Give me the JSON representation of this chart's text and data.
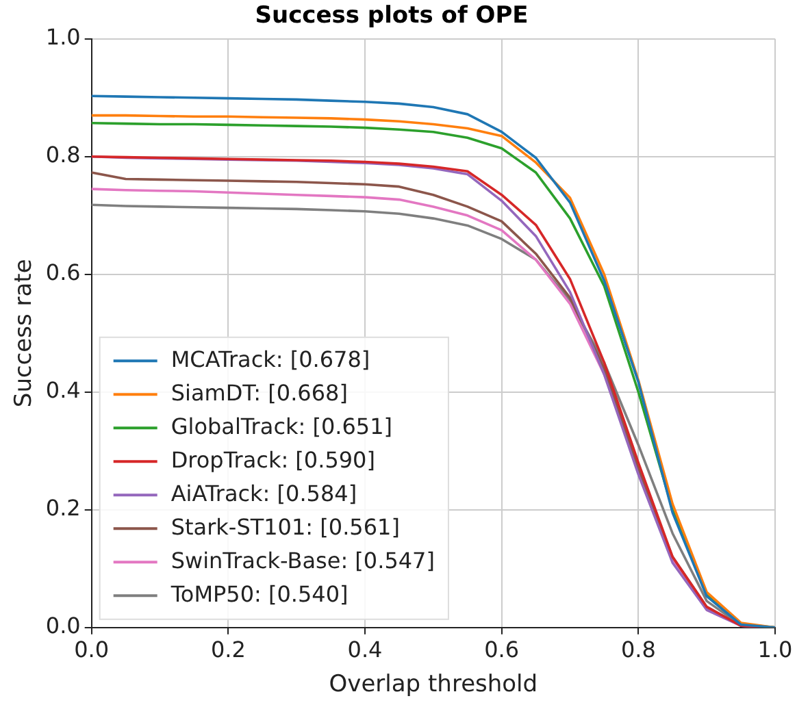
{
  "chart_data": {
    "type": "line",
    "title": "Success plots of OPE",
    "xlabel": "Overlap threshold",
    "ylabel": "Success rate",
    "x": [
      0,
      0.05,
      0.1,
      0.15,
      0.2,
      0.25,
      0.3,
      0.35,
      0.4,
      0.45,
      0.5,
      0.55,
      0.6,
      0.65,
      0.7,
      0.75,
      0.8,
      0.85,
      0.9,
      0.95,
      1.0
    ],
    "series": [
      {
        "name": "MCATrack: [0.678]",
        "color": "#1f77b4",
        "values": [
          0.903,
          0.902,
          0.901,
          0.9,
          0.899,
          0.898,
          0.897,
          0.895,
          0.893,
          0.89,
          0.884,
          0.872,
          0.842,
          0.798,
          0.722,
          0.589,
          0.417,
          0.195,
          0.053,
          0.005,
          0
        ]
      },
      {
        "name": "SiamDT: [0.668]",
        "color": "#ff7f0e",
        "values": [
          0.87,
          0.87,
          0.869,
          0.868,
          0.868,
          0.867,
          0.866,
          0.865,
          0.863,
          0.86,
          0.855,
          0.848,
          0.835,
          0.79,
          0.73,
          0.6,
          0.42,
          0.21,
          0.06,
          0.008,
          0
        ]
      },
      {
        "name": "GlobalTrack: [0.651]",
        "color": "#2ca02c",
        "values": [
          0.857,
          0.856,
          0.855,
          0.855,
          0.854,
          0.853,
          0.852,
          0.851,
          0.849,
          0.846,
          0.842,
          0.832,
          0.814,
          0.773,
          0.695,
          0.58,
          0.4,
          0.2,
          0.055,
          0.006,
          0
        ]
      },
      {
        "name": "DropTrack: [0.590]",
        "color": "#d62728",
        "values": [
          0.8,
          0.799,
          0.798,
          0.797,
          0.796,
          0.795,
          0.794,
          0.793,
          0.791,
          0.788,
          0.783,
          0.775,
          0.735,
          0.684,
          0.592,
          0.45,
          0.28,
          0.12,
          0.035,
          0.003,
          0
        ]
      },
      {
        "name": "AiATrack: [0.584]",
        "color": "#9467bd",
        "values": [
          0.8,
          0.798,
          0.797,
          0.796,
          0.795,
          0.794,
          0.793,
          0.791,
          0.789,
          0.786,
          0.78,
          0.77,
          0.725,
          0.665,
          0.57,
          0.43,
          0.26,
          0.11,
          0.03,
          0.003,
          0
        ]
      },
      {
        "name": "Stark-ST101: [0.561]",
        "color": "#8c564b",
        "values": [
          0.773,
          0.762,
          0.761,
          0.76,
          0.759,
          0.758,
          0.757,
          0.755,
          0.753,
          0.749,
          0.735,
          0.715,
          0.69,
          0.635,
          0.56,
          0.44,
          0.27,
          0.12,
          0.035,
          0.003,
          0
        ]
      },
      {
        "name": "SwinTrack-Base: [0.547]",
        "color": "#e377c2",
        "values": [
          0.745,
          0.743,
          0.742,
          0.741,
          0.739,
          0.737,
          0.735,
          0.733,
          0.731,
          0.727,
          0.715,
          0.7,
          0.675,
          0.625,
          0.55,
          0.43,
          0.265,
          0.115,
          0.03,
          0.003,
          0
        ]
      },
      {
        "name": "ToMP50: [0.540]",
        "color": "#7f7f7f",
        "values": [
          0.718,
          0.716,
          0.715,
          0.714,
          0.713,
          0.712,
          0.711,
          0.709,
          0.707,
          0.703,
          0.695,
          0.683,
          0.66,
          0.625,
          0.555,
          0.45,
          0.31,
          0.16,
          0.045,
          0.004,
          0
        ]
      }
    ],
    "xlim": [
      0,
      1
    ],
    "ylim": [
      0,
      1
    ],
    "xticks": [
      {
        "value": 0,
        "label": "0.0"
      },
      0.2,
      0.4,
      0.6,
      0.8,
      {
        "value": 1,
        "label": "1.0"
      }
    ],
    "yticks": [
      {
        "value": 0,
        "label": "0.0"
      },
      0.2,
      0.4,
      0.6,
      0.8,
      {
        "value": 1,
        "label": "1.0"
      }
    ],
    "grid": true,
    "legend": "bottom left",
    "marker": "none",
    "line_style": "solid"
  }
}
